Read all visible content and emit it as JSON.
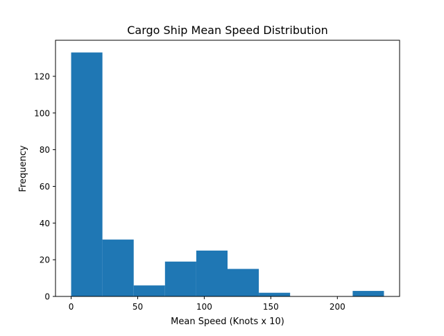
{
  "chart_data": {
    "type": "histogram",
    "title": "Cargo Ship Mean Speed Distribution",
    "xlabel": "Mean Speed (Knots x 10)",
    "ylabel": "Frequency",
    "bins": [
      {
        "start": 0,
        "end": 23.5,
        "count": 133
      },
      {
        "start": 23.5,
        "end": 47,
        "count": 31
      },
      {
        "start": 47,
        "end": 70.5,
        "count": 6
      },
      {
        "start": 70.5,
        "end": 94,
        "count": 19
      },
      {
        "start": 94,
        "end": 117.5,
        "count": 25
      },
      {
        "start": 117.5,
        "end": 141,
        "count": 15
      },
      {
        "start": 141,
        "end": 164.5,
        "count": 2
      },
      {
        "start": 164.5,
        "end": 188,
        "count": 0
      },
      {
        "start": 188,
        "end": 211.5,
        "count": 0
      },
      {
        "start": 211.5,
        "end": 235,
        "count": 3
      }
    ],
    "xlim": [
      -11.75,
      246.75
    ],
    "ylim": [
      0,
      139.65
    ],
    "xticks": [
      0,
      50,
      100,
      150,
      200
    ],
    "yticks": [
      0,
      20,
      40,
      60,
      80,
      100,
      120
    ],
    "bar_color": "#1f77b4",
    "grid": false
  }
}
